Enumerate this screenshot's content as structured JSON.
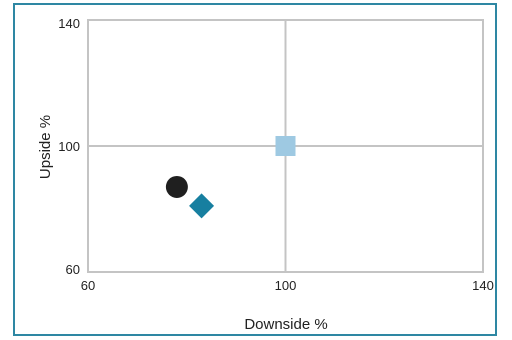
{
  "chart_data": {
    "type": "scatter",
    "xlabel": "Downside %",
    "ylabel": "Upside %",
    "xlim": [
      60,
      140
    ],
    "ylim": [
      60,
      140
    ],
    "x_ticks": [
      "60",
      "100",
      "140"
    ],
    "y_ticks": [
      "60",
      "100",
      "140"
    ],
    "grid": true,
    "reference_lines": {
      "x": 100,
      "y": 100
    },
    "series": [
      {
        "marker": "circle",
        "color": "#1f1f1f",
        "x": 78,
        "y": 87
      },
      {
        "marker": "diamond",
        "color": "#177fa0",
        "x": 83,
        "y": 81
      },
      {
        "marker": "square",
        "color": "#9ec9e2",
        "x": 100,
        "y": 100
      }
    ]
  },
  "colors": {
    "frame_border": "#2e87a3",
    "grid": "#c4c4c4"
  }
}
